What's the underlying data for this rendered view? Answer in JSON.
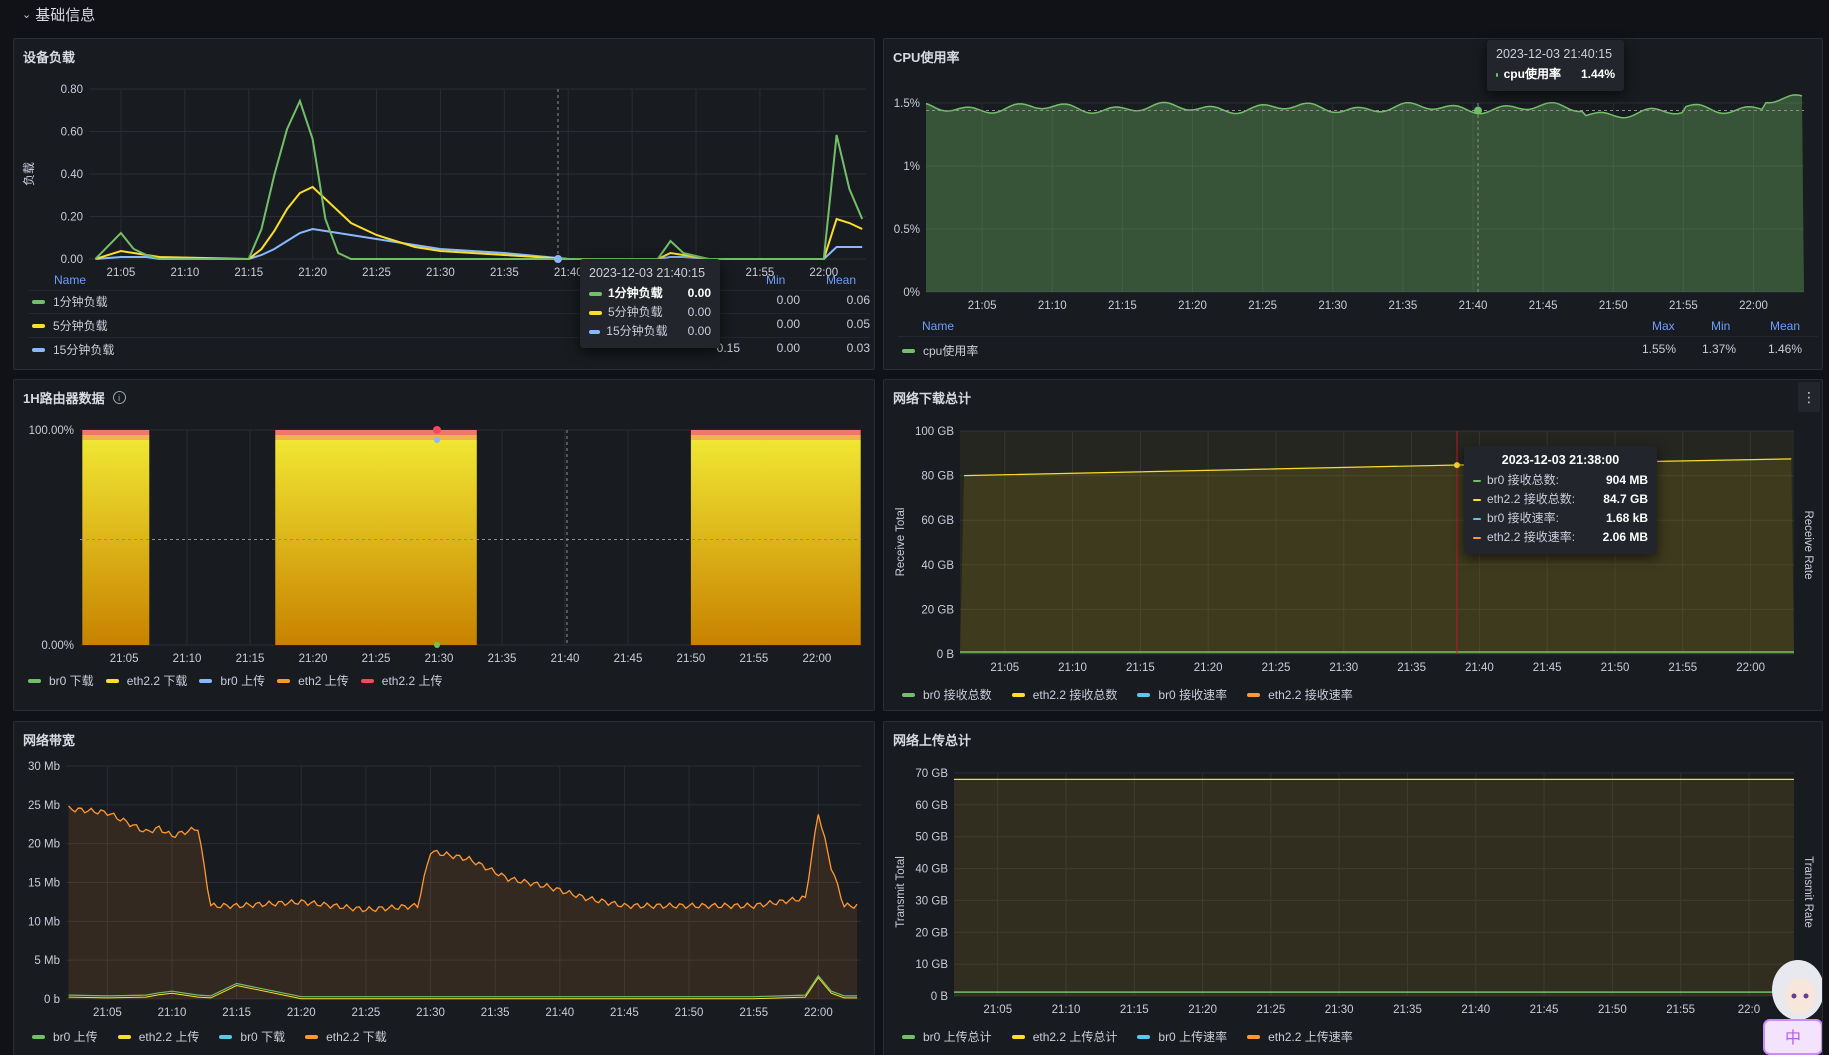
{
  "row": {
    "title": "基础信息"
  },
  "panels": {
    "load": {
      "title": "设备负载",
      "ylabel": "负载",
      "yticks": [
        "0.80",
        "0.60",
        "0.40",
        "0.20",
        "0.00"
      ],
      "xticks": [
        "21:05",
        "21:10",
        "21:15",
        "21:20",
        "21:25",
        "21:30",
        "21:35",
        "21:40",
        "21:45",
        "21:50",
        "21:55",
        "22:00"
      ],
      "legend_headers": {
        "name": "Name",
        "max": "Max",
        "min": "Min",
        "mean": "Mean"
      },
      "legend": [
        {
          "name": "1分钟负载",
          "max": "0.79",
          "min": "0.00",
          "mean": "0.06",
          "color": "#73bf69"
        },
        {
          "name": "5分钟负载",
          "max": "0.36",
          "min": "0.00",
          "mean": "0.05",
          "color": "#fade2a"
        },
        {
          "name": "15分钟负载",
          "max": "0.15",
          "min": "0.00",
          "mean": "0.03",
          "color": "#8ab8ff"
        }
      ],
      "tooltip": {
        "time": "2023-12-03 21:40:15",
        "rows": [
          {
            "label": "1分钟负载",
            "value": "0.00",
            "color": "#73bf69"
          },
          {
            "label": "5分钟负载",
            "value": "0.00",
            "color": "#fade2a"
          },
          {
            "label": "15分钟负载",
            "value": "0.00",
            "color": "#8ab8ff"
          }
        ]
      }
    },
    "cpu": {
      "title": "CPU使用率",
      "yticks": [
        "1.5%",
        "1%",
        "0.5%",
        "0%"
      ],
      "xticks": [
        "21:05",
        "21:10",
        "21:15",
        "21:20",
        "21:25",
        "21:30",
        "21:35",
        "21:40",
        "21:45",
        "21:50",
        "21:55",
        "22:00"
      ],
      "legend_headers": {
        "name": "Name",
        "max": "Max",
        "min": "Min",
        "mean": "Mean"
      },
      "legend": [
        {
          "name": "cpu使用率",
          "max": "1.55%",
          "min": "1.37%",
          "mean": "1.46%",
          "color": "#73bf69"
        }
      ],
      "tooltip": {
        "time": "2023-12-03 21:40:15",
        "rows": [
          {
            "label": "cpu使用率",
            "value": "1.44%",
            "color": "#73bf69"
          }
        ]
      }
    },
    "router": {
      "title": "1H路由器数据",
      "yticks": [
        "100.00%",
        "0.00%"
      ],
      "xticks": [
        "21:05",
        "21:10",
        "21:15",
        "21:20",
        "21:25",
        "21:30",
        "21:35",
        "21:40",
        "21:45",
        "21:50",
        "21:55",
        "22:00"
      ],
      "legend": [
        {
          "name": "br0 下载",
          "color": "#73bf69"
        },
        {
          "name": "eth2.2 下载",
          "color": "#fade2a"
        },
        {
          "name": "br0 上传",
          "color": "#8ab8ff"
        },
        {
          "name": "eth2 上传",
          "color": "#ff9830"
        },
        {
          "name": "eth2.2 上传",
          "color": "#f2495c"
        }
      ]
    },
    "download": {
      "title": "网络下载总计",
      "menu_icon": "⋮",
      "yticks": [
        "100 GB",
        "80 GB",
        "60 GB",
        "40 GB",
        "20 GB",
        "0 B"
      ],
      "xticks": [
        "21:05",
        "21:10",
        "21:15",
        "21:20",
        "21:25",
        "21:30",
        "21:35",
        "21:40",
        "21:45",
        "21:50",
        "21:55",
        "22:00"
      ],
      "ylabel_left": "Receive Total",
      "ylabel_right": "Receive Rate",
      "legend": [
        {
          "name": "br0 接收总数",
          "color": "#73bf69"
        },
        {
          "name": "eth2.2 接收总数",
          "color": "#fade2a"
        },
        {
          "name": "br0 接收速率",
          "color": "#5ac8e6"
        },
        {
          "name": "eth2.2 接收速率",
          "color": "#ff9830"
        }
      ],
      "tooltip": {
        "time": "2023-12-03 21:38:00",
        "rows": [
          {
            "label": "br0 接收总数:",
            "value": "904 MB",
            "color": "#73bf69"
          },
          {
            "label": "eth2.2 接收总数:",
            "value": "84.7 GB",
            "color": "#fade2a"
          },
          {
            "label": "br0 接收速率:",
            "value": "1.68 kB",
            "color": "#5ac8e6"
          },
          {
            "label": "eth2.2 接收速率:",
            "value": "2.06 MB",
            "color": "#ff9830"
          }
        ]
      }
    },
    "bandwidth": {
      "title": "网络带宽",
      "yticks": [
        "30 Mb",
        "25 Mb",
        "20 Mb",
        "15 Mb",
        "10 Mb",
        "5 Mb",
        "0 b"
      ],
      "xticks": [
        "21:05",
        "21:10",
        "21:15",
        "21:20",
        "21:25",
        "21:30",
        "21:35",
        "21:40",
        "21:45",
        "21:50",
        "21:55",
        "22:00"
      ],
      "legend": [
        {
          "name": "br0 上传",
          "color": "#73bf69"
        },
        {
          "name": "eth2.2 上传",
          "color": "#fade2a"
        },
        {
          "name": "br0 下载",
          "color": "#5ac8e6"
        },
        {
          "name": "eth2.2 下载",
          "color": "#ff9830"
        }
      ]
    },
    "upload": {
      "title": "网络上传总计",
      "yticks": [
        "70 GB",
        "60 GB",
        "50 GB",
        "40 GB",
        "30 GB",
        "20 GB",
        "10 GB",
        "0 B"
      ],
      "xticks": [
        "21:05",
        "21:10",
        "21:15",
        "21:20",
        "21:25",
        "21:30",
        "21:35",
        "21:40",
        "21:45",
        "21:50",
        "21:55",
        "22:0"
      ],
      "ylabel_left": "Transmit Total",
      "ylabel_right": "Transmit Rate",
      "legend": [
        {
          "name": "br0 上传总计",
          "color": "#73bf69"
        },
        {
          "name": "eth2.2 上传总计",
          "color": "#fade2a"
        },
        {
          "name": "br0 上传速率",
          "color": "#5ac8e6"
        },
        {
          "name": "eth2.2 上传速率",
          "color": "#ff9830"
        }
      ]
    }
  },
  "chart_data": [
    {
      "type": "line",
      "title": "设备负载",
      "ylabel": "负载",
      "ylim": [
        0,
        0.85
      ],
      "x": [
        "21:03",
        "21:05",
        "21:06",
        "21:07",
        "21:08",
        "21:15",
        "21:16",
        "21:17",
        "21:18",
        "21:19",
        "21:20",
        "21:21",
        "21:22",
        "21:23",
        "21:25",
        "21:28",
        "21:30",
        "21:35",
        "21:40",
        "21:47",
        "21:48",
        "21:49",
        "21:51",
        "22:00",
        "22:01",
        "22:02",
        "22:03"
      ],
      "series": [
        {
          "name": "1分钟负载",
          "values": [
            0,
            0.13,
            0.05,
            0.02,
            0,
            0,
            0.15,
            0.42,
            0.65,
            0.79,
            0.6,
            0.2,
            0.03,
            0,
            0,
            0,
            0,
            0,
            0,
            0,
            0.09,
            0.03,
            0,
            0,
            0.62,
            0.35,
            0.2
          ]
        },
        {
          "name": "5分钟负载",
          "values": [
            0,
            0.04,
            0.03,
            0.02,
            0.01,
            0,
            0.05,
            0.14,
            0.25,
            0.33,
            0.36,
            0.3,
            0.24,
            0.18,
            0.12,
            0.06,
            0.04,
            0.02,
            0,
            0,
            0.03,
            0.02,
            0,
            0,
            0.2,
            0.18,
            0.15
          ]
        },
        {
          "name": "15分钟负载",
          "values": [
            0,
            0.01,
            0.01,
            0.01,
            0,
            0,
            0.02,
            0.05,
            0.09,
            0.13,
            0.15,
            0.14,
            0.13,
            0.12,
            0.1,
            0.07,
            0.05,
            0.03,
            0,
            0,
            0.01,
            0.01,
            0,
            0,
            0.06,
            0.06,
            0.06
          ]
        }
      ]
    },
    {
      "type": "area",
      "title": "CPU使用率",
      "ylim": [
        0,
        1.6
      ],
      "x": [
        "21:02",
        "22:03"
      ],
      "series": [
        {
          "name": "cpu使用率",
          "values": [
            1.46,
            1.46
          ],
          "max": 1.55,
          "min": 1.37,
          "mean": 1.46
        }
      ]
    },
    {
      "type": "area",
      "title": "1H路由器数据",
      "ylim": [
        0,
        100
      ],
      "x": [
        "21:02",
        "21:07",
        "21:17",
        "21:33",
        "21:50",
        "22:03"
      ],
      "series": [
        {
          "name": "br0 下载",
          "values": [
            100,
            100,
            100,
            100,
            100,
            100
          ]
        },
        {
          "name": "eth2.2 下载",
          "values": [
            100,
            100,
            100,
            100,
            100,
            100
          ]
        }
      ]
    },
    {
      "type": "line",
      "title": "网络下载总计",
      "ylabel": "Receive Total",
      "ylim": [
        0,
        100
      ],
      "x": [
        "21:02",
        "21:38",
        "22:03"
      ],
      "series": [
        {
          "name": "eth2.2 接收总数",
          "values": [
            80,
            84.7,
            87.5
          ]
        },
        {
          "name": "br0 接收总数",
          "values": [
            0.9,
            0.9,
            0.9
          ]
        }
      ]
    },
    {
      "type": "line",
      "title": "网络带宽",
      "ylim": [
        0,
        30
      ],
      "x": [
        "21:02",
        "21:05",
        "21:08",
        "21:09",
        "21:10",
        "21:12",
        "21:13",
        "21:15",
        "21:20",
        "21:25",
        "21:29",
        "21:30",
        "21:33",
        "21:36",
        "21:39",
        "21:42",
        "21:45",
        "21:50",
        "21:55",
        "21:59",
        "22:00",
        "22:01",
        "22:02",
        "22:03"
      ],
      "series": [
        {
          "name": "eth2.2 下载",
          "values": [
            24.5,
            24,
            21.5,
            22,
            21,
            22,
            12,
            12,
            12.5,
            11.5,
            12,
            19,
            18,
            15.5,
            14.5,
            13,
            12,
            12,
            12,
            13,
            24,
            17,
            12,
            12
          ]
        },
        {
          "name": "br0 上传",
          "values": [
            0.5,
            0.4,
            0.5,
            0.8,
            1,
            0.5,
            0.4,
            2,
            0.3,
            0.3,
            0.3,
            0.3,
            0.3,
            0.3,
            0.3,
            0.3,
            0.3,
            0.3,
            0.3,
            0.5,
            3,
            1,
            0.4,
            0.4
          ]
        }
      ]
    },
    {
      "type": "line",
      "title": "网络上传总计",
      "ylabel": "Transmit Total",
      "ylim": [
        0,
        70
      ],
      "x": [
        "21:02",
        "22:03"
      ],
      "series": [
        {
          "name": "eth2.2 上传总计",
          "values": [
            68,
            68
          ]
        },
        {
          "name": "br0 上传总计",
          "values": [
            1.2,
            1.2
          ]
        }
      ]
    }
  ]
}
